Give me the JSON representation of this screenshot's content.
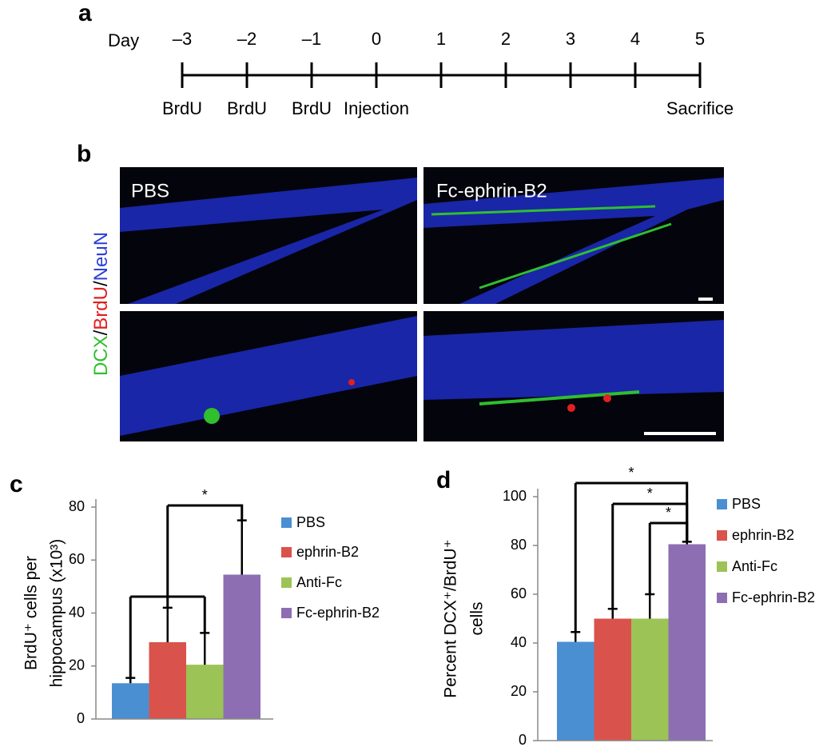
{
  "panels": [
    "a",
    "b",
    "c",
    "d"
  ],
  "timeline": {
    "label": "Day",
    "days": [
      {
        "value": -3,
        "label": "–3"
      },
      {
        "value": -2,
        "label": "–2"
      },
      {
        "value": -1,
        "label": "–1"
      },
      0,
      1,
      2,
      3,
      4,
      5
    ],
    "events": [
      "BrdU",
      "BrdU",
      "BrdU",
      "Injection",
      null,
      null,
      null,
      null,
      "Sacrifice"
    ]
  },
  "micrographs": {
    "conditions": [
      "PBS",
      "Fc-ephrin-B2"
    ],
    "stain_label": [
      {
        "text": "DCX",
        "color": "#2fbf2f"
      },
      {
        "text": "/",
        "color": "#000000"
      },
      {
        "text": "BrdU",
        "color": "#e02020"
      },
      {
        "text": "/",
        "color": "#000000"
      },
      {
        "text": "NeuN",
        "color": "#2b3fd6"
      }
    ]
  },
  "chart_data": [
    {
      "type": "bar",
      "ylabel": [
        "BrdU⁺ cells per",
        "hippocampus (x10³)"
      ],
      "categories": [
        "PBS",
        "ephrin-B2",
        "Anti-Fc",
        "Fc-ephrin-B2"
      ],
      "values": [
        13.5,
        29,
        20.5,
        54.5
      ],
      "errors": [
        2,
        13,
        12,
        20.5
      ],
      "colors": [
        "#4a8fd2",
        "#d9534c",
        "#9cc356",
        "#8e6eb2"
      ],
      "ylim": [
        0,
        80
      ],
      "yticks": [
        0,
        20,
        40,
        60,
        80
      ],
      "comparisons": [
        {
          "groups": [
            0,
            1,
            2
          ],
          "vs": 3,
          "label": "*"
        }
      ]
    },
    {
      "type": "bar",
      "ylabel": [
        "Percent DCX⁺/BrdU⁺",
        "cells"
      ],
      "categories": [
        "PBS",
        "ephrin-B2",
        "Anti-Fc",
        "Fc-ephrin-B2"
      ],
      "values": [
        40.5,
        50,
        50,
        80.5
      ],
      "errors": [
        4,
        4,
        10,
        1
      ],
      "colors": [
        "#4a8fd2",
        "#d9534c",
        "#9cc356",
        "#8e6eb2"
      ],
      "ylim": [
        0,
        100
      ],
      "yticks": [
        0,
        20,
        40,
        60,
        80,
        100
      ],
      "comparisons": [
        {
          "groups": [
            0
          ],
          "vs": 3,
          "label": "*"
        },
        {
          "groups": [
            1
          ],
          "vs": 3,
          "label": "*"
        },
        {
          "groups": [
            2
          ],
          "vs": 3,
          "label": "*"
        }
      ]
    }
  ]
}
